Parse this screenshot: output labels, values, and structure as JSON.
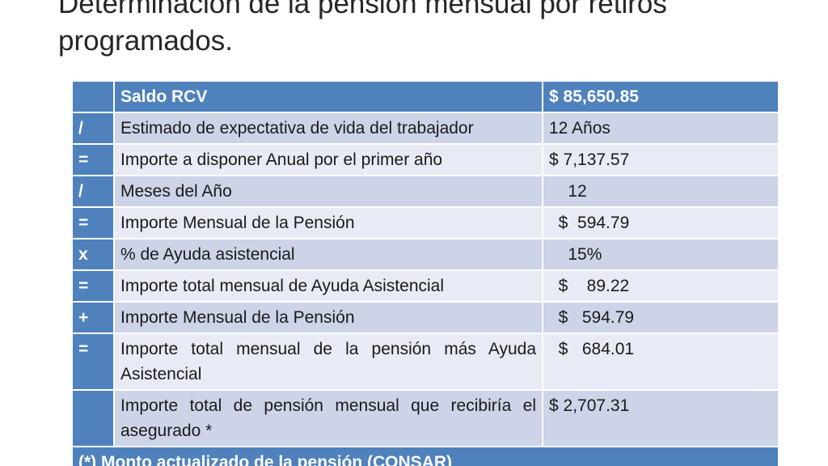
{
  "slide": {
    "title": "Determinación de la pensión mensual por retiros programados."
  },
  "table": {
    "rows": [
      {
        "op": "",
        "label": "Saldo RCV",
        "value": "$ 85,650.85"
      },
      {
        "op": "/",
        "label": "Estimado de expectativa de vida del trabajador",
        "value": "12 Años"
      },
      {
        "op": "=",
        "label": "Importe a disponer Anual por el primer año",
        "value": "$ 7,137.57"
      },
      {
        "op": "/",
        "label": "Meses del Año",
        "value": "    12"
      },
      {
        "op": "=",
        "label": "Importe Mensual de la Pensión",
        "value": "  $  594.79"
      },
      {
        "op": "x",
        "label": "% de Ayuda asistencial",
        "value": "    15%"
      },
      {
        "op": "=",
        "label": "Importe total mensual de Ayuda Asistencial",
        "value": "  $    89.22"
      },
      {
        "op": "+",
        "label": "Importe Mensual de la Pensión",
        "value": "  $   594.79"
      },
      {
        "op": "=",
        "label": "Importe total mensual de la pensión más  Ayuda Asistencial",
        "value": "  $   684.01"
      },
      {
        "op": "",
        "label": "Importe total de pensión mensual que recibiría el asegurado *",
        "value": "$ 2,707.31"
      }
    ],
    "footer": "(*) Monto actualizado de la pensión (CONSAR)"
  },
  "colors": {
    "header_fill": "#4f81bd",
    "band_dark": "#cdd4e8",
    "band_light": "#e8ebf5",
    "title_text": "#262626"
  }
}
